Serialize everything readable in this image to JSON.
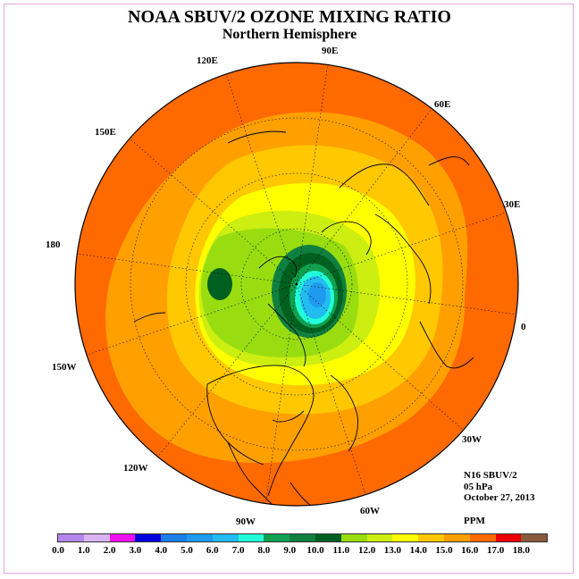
{
  "title": "NOAA SBUV/2 OZONE MIXING RATIO",
  "subtitle": "Northern Hemisphere",
  "longitude_labels": [
    "90E",
    "60E",
    "30E",
    "0",
    "30W",
    "60W",
    "90W",
    "120W",
    "150W",
    "180",
    "150E",
    "120E"
  ],
  "info": {
    "instrument": "N16 SBUV/2",
    "level": "05 hPa",
    "date": "October 27, 2013",
    "units": "PPM"
  },
  "colorbar": {
    "colors": [
      "#b585ee",
      "#d9b3f2",
      "#ee10ee",
      "#0000dd",
      "#1a7fe6",
      "#1e9aee",
      "#22bbf2",
      "#22ffd8",
      "#10a050",
      "#108040",
      "#006020",
      "#99dd10",
      "#ccee10",
      "#ffff00",
      "#ffc800",
      "#ffa000",
      "#ff6a00",
      "#ee0000",
      "#8b5a3c"
    ],
    "tick_labels": [
      "0.0",
      "1.0",
      "2.0",
      "3.0",
      "4.0",
      "5.0",
      "6.0",
      "7.0",
      "8.0",
      "9.0",
      "10.0",
      "11.0",
      "12.0",
      "13.0",
      "14.0",
      "15.0",
      "16.0",
      "17.0",
      "18.0"
    ]
  }
}
